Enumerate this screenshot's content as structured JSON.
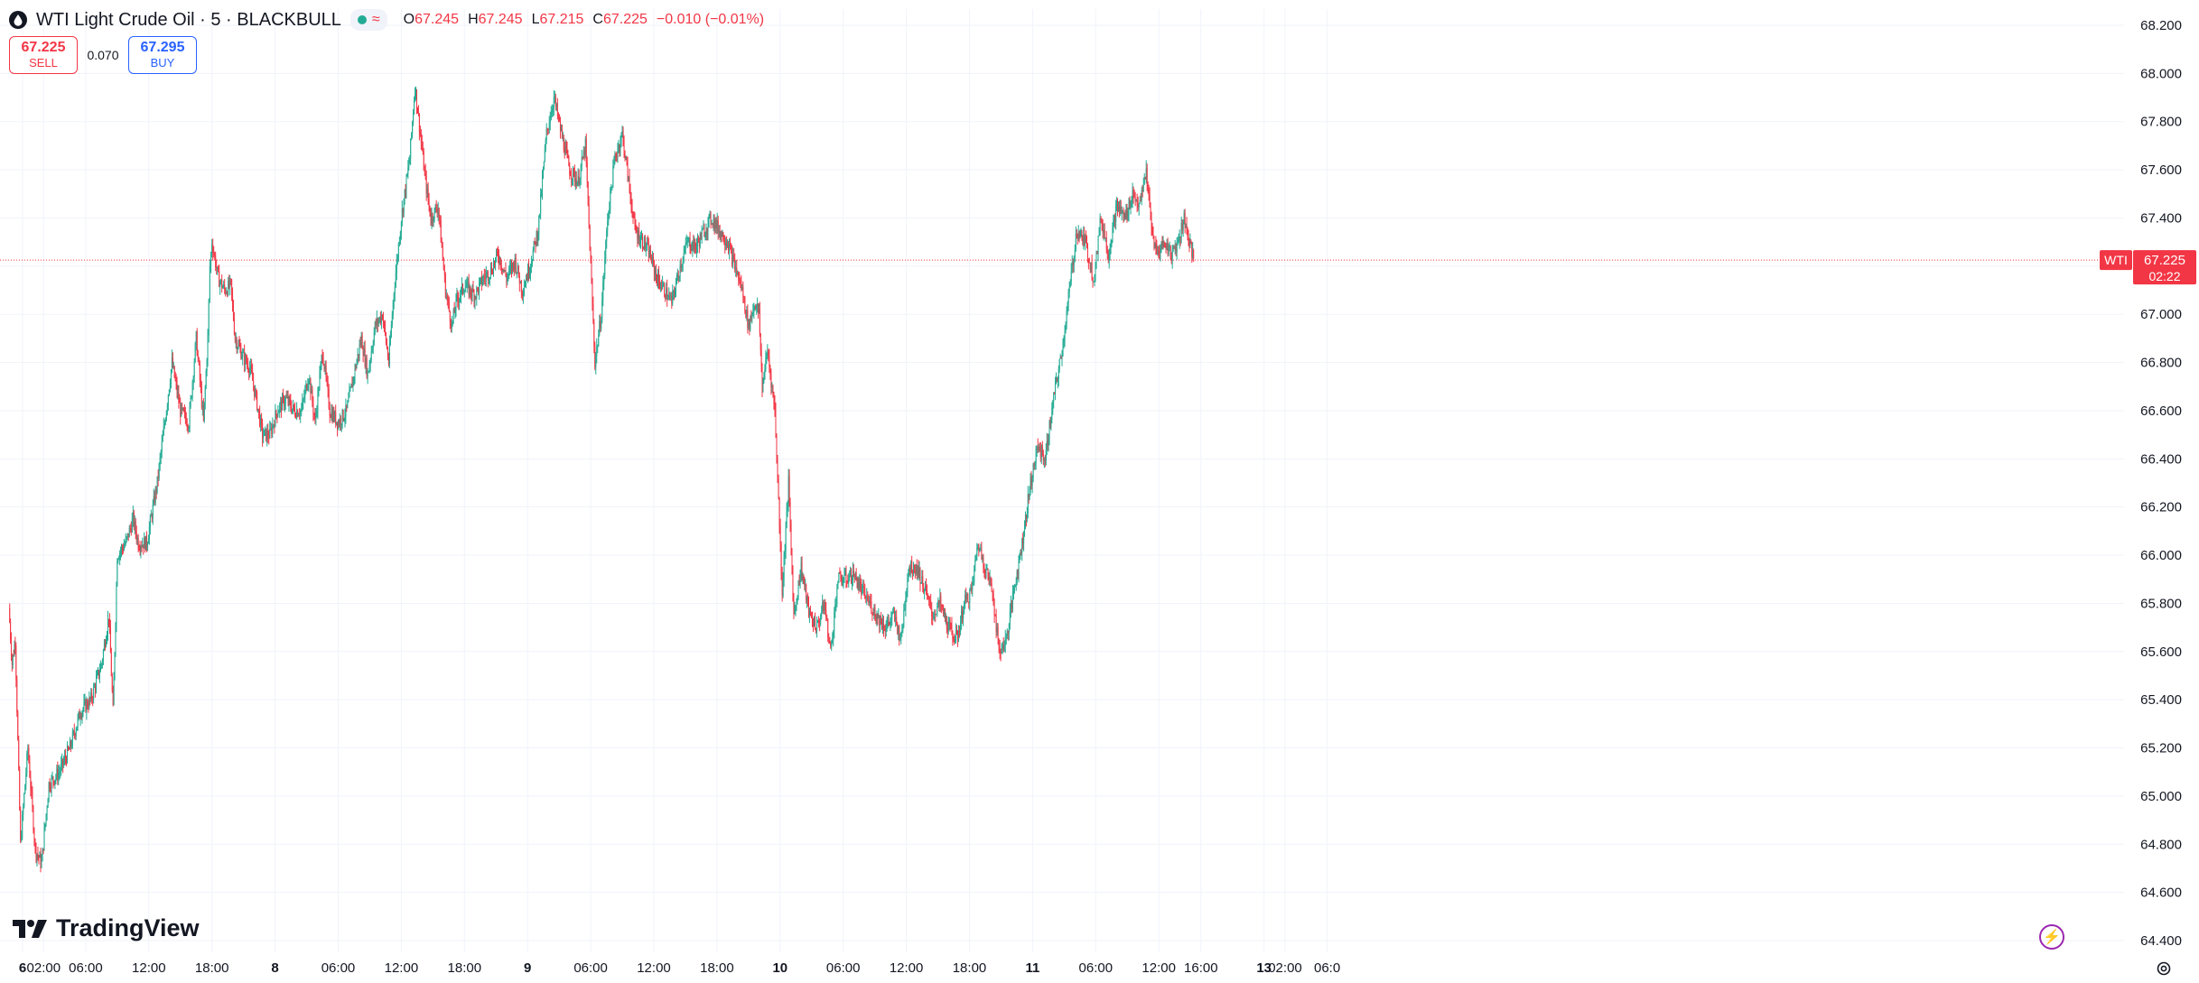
{
  "header": {
    "title": "WTI Light Crude Oil · 5 · BLACKBULL",
    "ohlc": [
      {
        "key": "O",
        "value": "67.245"
      },
      {
        "key": "H",
        "value": "67.245"
      },
      {
        "key": "L",
        "value": "67.215"
      },
      {
        "key": "C",
        "value": "67.225"
      }
    ],
    "change": "−0.010 (−0.01%)"
  },
  "trade": {
    "sell_price": "67.225",
    "sell_label": "SELL",
    "spread": "0.070",
    "buy_price": "67.295",
    "buy_label": "BUY"
  },
  "brand": "TradingView",
  "colors": {
    "up": "#22ab94",
    "down": "#f23645",
    "grid": "#f0f3fa",
    "text": "#131722",
    "price_tag": "#f23645"
  },
  "icons": {
    "symbol": "droplet-icon",
    "status": "market-open-dot-icon",
    "waves": "waves-icon",
    "bolt": "lightning-icon",
    "settings": "gear-icon"
  },
  "chart_data": {
    "type": "candlestick",
    "interval": "5",
    "ylim": [
      64.4,
      68.2
    ],
    "y_ticks": [
      "68.200",
      "68.000",
      "67.800",
      "67.600",
      "67.400",
      "67.200",
      "67.000",
      "66.800",
      "66.600",
      "66.400",
      "66.200",
      "66.000",
      "65.800",
      "65.600",
      "65.400",
      "65.200",
      "65.000",
      "64.800",
      "64.600",
      "64.400"
    ],
    "x_ticks": [
      {
        "label": "6",
        "bold": true,
        "x": 0.0
      },
      {
        "label": "02:00",
        "bold": false,
        "x": 2.0
      },
      {
        "label": "06:00",
        "bold": false,
        "x": 6.0
      },
      {
        "label": "12:00",
        "bold": false,
        "x": 12.0
      },
      {
        "label": "18:00",
        "bold": false,
        "x": 18.0
      },
      {
        "label": "8",
        "bold": true,
        "x": 24.0
      },
      {
        "label": "06:00",
        "bold": false,
        "x": 30.0
      },
      {
        "label": "12:00",
        "bold": false,
        "x": 36.0
      },
      {
        "label": "18:00",
        "bold": false,
        "x": 42.0
      },
      {
        "label": "9",
        "bold": true,
        "x": 48.0
      },
      {
        "label": "06:00",
        "bold": false,
        "x": 54.0
      },
      {
        "label": "12:00",
        "bold": false,
        "x": 60.0
      },
      {
        "label": "18:00",
        "bold": false,
        "x": 66.0
      },
      {
        "label": "10",
        "bold": true,
        "x": 72.0
      },
      {
        "label": "06:00",
        "bold": false,
        "x": 78.0
      },
      {
        "label": "12:00",
        "bold": false,
        "x": 84.0
      },
      {
        "label": "18:00",
        "bold": false,
        "x": 90.0
      },
      {
        "label": "11",
        "bold": true,
        "x": 96.0
      },
      {
        "label": "06:00",
        "bold": false,
        "x": 102.0
      },
      {
        "label": "12:00",
        "bold": false,
        "x": 108.0
      },
      {
        "label": "16:00",
        "bold": false,
        "x": 112.0
      },
      {
        "label": "13",
        "bold": true,
        "x": 118.0
      },
      {
        "label": "02:00",
        "bold": false,
        "x": 120.0
      },
      {
        "label": "06:0",
        "bold": false,
        "x": 124.0
      }
    ],
    "x_range": [
      -1.3,
      126.0
    ],
    "price_line": {
      "label": "WTI",
      "value": 67.225,
      "value_label": "67.225",
      "countdown": "02:22"
    },
    "close_series": [
      {
        "x": -1.3,
        "y": 65.78
      },
      {
        "x": -1.0,
        "y": 65.55
      },
      {
        "x": -0.7,
        "y": 65.65
      },
      {
        "x": -0.2,
        "y": 64.8
      },
      {
        "x": 0.5,
        "y": 65.2
      },
      {
        "x": 1.2,
        "y": 64.78
      },
      {
        "x": 1.8,
        "y": 64.72
      },
      {
        "x": 2.5,
        "y": 65.05
      },
      {
        "x": 3.5,
        "y": 65.1
      },
      {
        "x": 4.5,
        "y": 65.2
      },
      {
        "x": 5.5,
        "y": 65.35
      },
      {
        "x": 6.5,
        "y": 65.4
      },
      {
        "x": 7.5,
        "y": 65.55
      },
      {
        "x": 8.2,
        "y": 65.75
      },
      {
        "x": 8.6,
        "y": 65.35
      },
      {
        "x": 9.0,
        "y": 66.0
      },
      {
        "x": 9.8,
        "y": 66.05
      },
      {
        "x": 10.5,
        "y": 66.15
      },
      {
        "x": 11.0,
        "y": 66.05
      },
      {
        "x": 11.8,
        "y": 66.05
      },
      {
        "x": 12.8,
        "y": 66.3
      },
      {
        "x": 13.5,
        "y": 66.55
      },
      {
        "x": 14.2,
        "y": 66.8
      },
      {
        "x": 15.0,
        "y": 66.6
      },
      {
        "x": 15.8,
        "y": 66.55
      },
      {
        "x": 16.5,
        "y": 66.9
      },
      {
        "x": 17.2,
        "y": 66.55
      },
      {
        "x": 17.6,
        "y": 66.9
      },
      {
        "x": 17.8,
        "y": 67.2
      },
      {
        "x": 18.0,
        "y": 67.3
      },
      {
        "x": 18.6,
        "y": 67.15
      },
      {
        "x": 19.2,
        "y": 67.1
      },
      {
        "x": 19.8,
        "y": 67.12
      },
      {
        "x": 20.2,
        "y": 66.9
      },
      {
        "x": 21.0,
        "y": 66.82
      },
      {
        "x": 21.6,
        "y": 66.78
      },
      {
        "x": 22.2,
        "y": 66.65
      },
      {
        "x": 22.8,
        "y": 66.5
      },
      {
        "x": 23.5,
        "y": 66.5
      },
      {
        "x": 24.2,
        "y": 66.6
      },
      {
        "x": 25.0,
        "y": 66.65
      },
      {
        "x": 25.8,
        "y": 66.6
      },
      {
        "x": 26.5,
        "y": 66.6
      },
      {
        "x": 27.2,
        "y": 66.75
      },
      {
        "x": 27.8,
        "y": 66.55
      },
      {
        "x": 28.5,
        "y": 66.85
      },
      {
        "x": 29.2,
        "y": 66.6
      },
      {
        "x": 30.0,
        "y": 66.55
      },
      {
        "x": 30.8,
        "y": 66.6
      },
      {
        "x": 31.5,
        "y": 66.75
      },
      {
        "x": 32.2,
        "y": 66.9
      },
      {
        "x": 32.8,
        "y": 66.75
      },
      {
        "x": 33.5,
        "y": 66.95
      },
      {
        "x": 34.2,
        "y": 67.0
      },
      {
        "x": 34.8,
        "y": 66.8
      },
      {
        "x": 35.3,
        "y": 67.1
      },
      {
        "x": 36.0,
        "y": 67.4
      },
      {
        "x": 36.8,
        "y": 67.65
      },
      {
        "x": 37.3,
        "y": 67.95
      },
      {
        "x": 37.8,
        "y": 67.75
      },
      {
        "x": 38.3,
        "y": 67.55
      },
      {
        "x": 38.8,
        "y": 67.4
      },
      {
        "x": 39.5,
        "y": 67.45
      },
      {
        "x": 40.2,
        "y": 67.1
      },
      {
        "x": 40.8,
        "y": 66.95
      },
      {
        "x": 41.2,
        "y": 67.05
      },
      {
        "x": 42.0,
        "y": 67.12
      },
      {
        "x": 43.0,
        "y": 67.08
      },
      {
        "x": 43.8,
        "y": 67.15
      },
      {
        "x": 44.5,
        "y": 67.18
      },
      {
        "x": 45.2,
        "y": 67.25
      },
      {
        "x": 46.0,
        "y": 67.15
      },
      {
        "x": 46.8,
        "y": 67.22
      },
      {
        "x": 47.5,
        "y": 67.1
      },
      {
        "x": 48.2,
        "y": 67.2
      },
      {
        "x": 49.0,
        "y": 67.35
      },
      {
        "x": 49.8,
        "y": 67.75
      },
      {
        "x": 50.5,
        "y": 67.9
      },
      {
        "x": 51.2,
        "y": 67.75
      },
      {
        "x": 52.0,
        "y": 67.6
      },
      {
        "x": 52.8,
        "y": 67.55
      },
      {
        "x": 53.5,
        "y": 67.7
      },
      {
        "x": 54.0,
        "y": 67.2
      },
      {
        "x": 54.4,
        "y": 66.8
      },
      {
        "x": 55.0,
        "y": 67.0
      },
      {
        "x": 55.6,
        "y": 67.4
      },
      {
        "x": 56.3,
        "y": 67.65
      },
      {
        "x": 57.0,
        "y": 67.75
      },
      {
        "x": 57.6,
        "y": 67.55
      },
      {
        "x": 58.2,
        "y": 67.35
      },
      {
        "x": 59.0,
        "y": 67.3
      },
      {
        "x": 59.6,
        "y": 67.25
      },
      {
        "x": 60.3,
        "y": 67.15
      },
      {
        "x": 61.0,
        "y": 67.1
      },
      {
        "x": 61.7,
        "y": 67.05
      },
      {
        "x": 62.5,
        "y": 67.2
      },
      {
        "x": 63.2,
        "y": 67.3
      },
      {
        "x": 64.0,
        "y": 67.28
      },
      {
        "x": 64.8,
        "y": 67.35
      },
      {
        "x": 65.5,
        "y": 67.4
      },
      {
        "x": 66.2,
        "y": 67.35
      },
      {
        "x": 67.0,
        "y": 67.3
      },
      {
        "x": 67.7,
        "y": 67.2
      },
      {
        "x": 68.4,
        "y": 67.1
      },
      {
        "x": 69.0,
        "y": 66.95
      },
      {
        "x": 69.6,
        "y": 67.05
      },
      {
        "x": 70.0,
        "y": 67.0
      },
      {
        "x": 70.3,
        "y": 66.7
      },
      {
        "x": 70.8,
        "y": 66.85
      },
      {
        "x": 71.5,
        "y": 66.6
      },
      {
        "x": 72.2,
        "y": 65.85
      },
      {
        "x": 72.8,
        "y": 66.3
      },
      {
        "x": 73.3,
        "y": 65.75
      },
      {
        "x": 74.0,
        "y": 65.95
      },
      {
        "x": 74.8,
        "y": 65.75
      },
      {
        "x": 75.5,
        "y": 65.7
      },
      {
        "x": 76.2,
        "y": 65.8
      },
      {
        "x": 76.8,
        "y": 65.6
      },
      {
        "x": 77.5,
        "y": 65.9
      },
      {
        "x": 78.2,
        "y": 65.9
      },
      {
        "x": 79.0,
        "y": 65.92
      },
      {
        "x": 79.8,
        "y": 65.85
      },
      {
        "x": 80.5,
        "y": 65.8
      },
      {
        "x": 81.2,
        "y": 65.75
      },
      {
        "x": 82.0,
        "y": 65.7
      },
      {
        "x": 82.8,
        "y": 65.75
      },
      {
        "x": 83.5,
        "y": 65.65
      },
      {
        "x": 84.2,
        "y": 65.95
      },
      {
        "x": 85.0,
        "y": 65.95
      },
      {
        "x": 85.8,
        "y": 65.85
      },
      {
        "x": 86.5,
        "y": 65.75
      },
      {
        "x": 87.2,
        "y": 65.8
      },
      {
        "x": 88.0,
        "y": 65.7
      },
      {
        "x": 88.8,
        "y": 65.65
      },
      {
        "x": 89.5,
        "y": 65.8
      },
      {
        "x": 90.2,
        "y": 65.85
      },
      {
        "x": 90.8,
        "y": 66.05
      },
      {
        "x": 91.5,
        "y": 65.95
      },
      {
        "x": 92.2,
        "y": 65.85
      },
      {
        "x": 92.8,
        "y": 65.6
      },
      {
        "x": 93.5,
        "y": 65.65
      },
      {
        "x": 94.2,
        "y": 65.85
      },
      {
        "x": 95.0,
        "y": 66.05
      },
      {
        "x": 95.8,
        "y": 66.3
      },
      {
        "x": 96.5,
        "y": 66.45
      },
      {
        "x": 97.2,
        "y": 66.4
      },
      {
        "x": 98.0,
        "y": 66.65
      },
      {
        "x": 98.8,
        "y": 66.85
      },
      {
        "x": 99.5,
        "y": 67.1
      },
      {
        "x": 100.2,
        "y": 67.35
      },
      {
        "x": 101.0,
        "y": 67.3
      },
      {
        "x": 101.8,
        "y": 67.15
      },
      {
        "x": 102.5,
        "y": 67.4
      },
      {
        "x": 103.2,
        "y": 67.25
      },
      {
        "x": 104.0,
        "y": 67.45
      },
      {
        "x": 104.8,
        "y": 67.4
      },
      {
        "x": 105.5,
        "y": 67.5
      },
      {
        "x": 106.2,
        "y": 67.45
      },
      {
        "x": 106.8,
        "y": 67.6
      },
      {
        "x": 107.3,
        "y": 67.35
      },
      {
        "x": 107.8,
        "y": 67.25
      },
      {
        "x": 108.5,
        "y": 67.3
      },
      {
        "x": 109.2,
        "y": 67.25
      },
      {
        "x": 109.8,
        "y": 67.3
      },
      {
        "x": 110.4,
        "y": 67.4
      },
      {
        "x": 110.9,
        "y": 67.3
      },
      {
        "x": 111.3,
        "y": 67.225
      }
    ]
  }
}
